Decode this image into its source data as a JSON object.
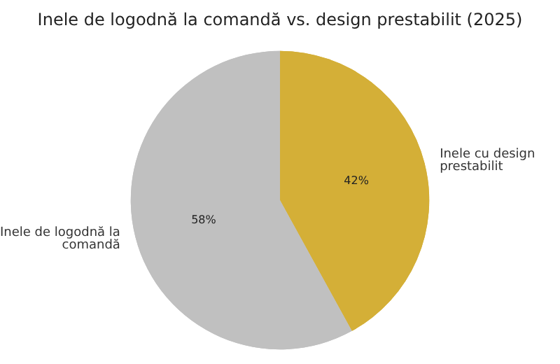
{
  "chart_data": {
    "type": "pie",
    "title": "Inele de logodnă la comandă vs. design prestabilit (2025)",
    "categories": [
      "Inele cu design prestabilit",
      "Inele de logodnă la comandă"
    ],
    "values": [
      42,
      58
    ],
    "colors": [
      "#d4af37",
      "#c0c0c0"
    ],
    "value_labels": [
      "42%",
      "58%"
    ],
    "legend": false
  }
}
